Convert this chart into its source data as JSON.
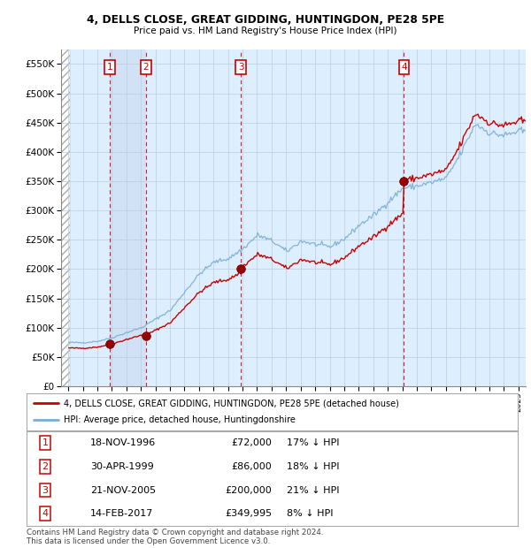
{
  "title1": "4, DELLS CLOSE, GREAT GIDDING, HUNTINGDON, PE28 5PE",
  "title2": "Price paid vs. HM Land Registry's House Price Index (HPI)",
  "legend1": "4, DELLS CLOSE, GREAT GIDDING, HUNTINGDON, PE28 5PE (detached house)",
  "legend2": "HPI: Average price, detached house, Huntingdonshire",
  "footer": "Contains HM Land Registry data © Crown copyright and database right 2024.\nThis data is licensed under the Open Government Licence v3.0.",
  "transactions": [
    {
      "num": 1,
      "date": "18-NOV-1996",
      "date_x": 1996.877,
      "price": 72000,
      "pct": "17% ↓ HPI"
    },
    {
      "num": 2,
      "date": "30-APR-1999",
      "date_x": 1999.329,
      "price": 86000,
      "pct": "18% ↓ HPI"
    },
    {
      "num": 3,
      "date": "21-NOV-2005",
      "date_x": 2005.877,
      "price": 200000,
      "pct": "21% ↓ HPI"
    },
    {
      "num": 4,
      "date": "14-FEB-2017",
      "date_x": 2017.118,
      "price": 349995,
      "pct": "8% ↓ HPI"
    }
  ],
  "ylim": [
    0,
    575000
  ],
  "xlim_start": 1993.5,
  "xlim_end": 2025.5,
  "hatch_x_end": 1994.08,
  "price_line_color": "#cc0000",
  "hpi_line_color": "#7aadd4",
  "background_color": "#ddeeff",
  "hatch_color": "#aaaaaa",
  "grid_color": "#bbccdd",
  "vline_color": "#cc0000",
  "dot_color": "#880000"
}
